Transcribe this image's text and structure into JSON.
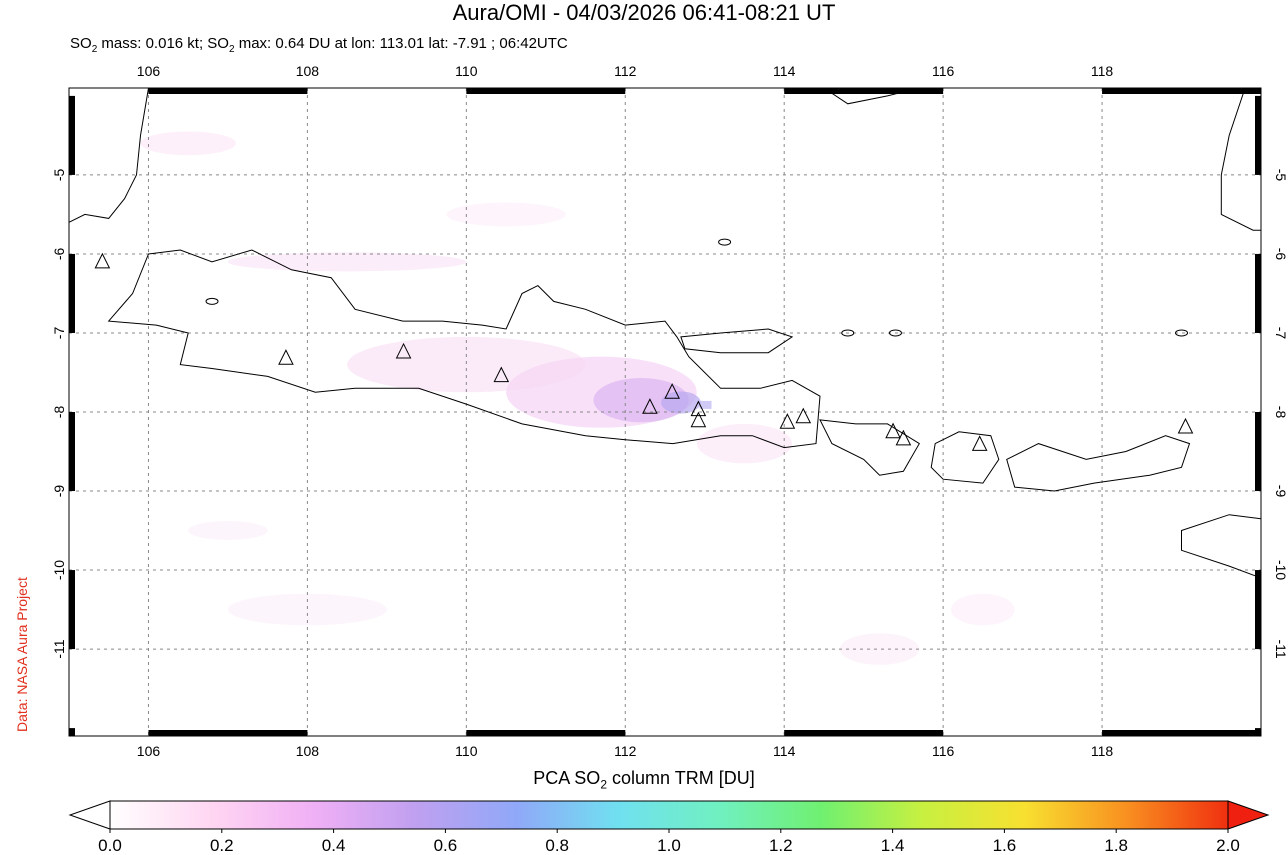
{
  "title": "Aura/OMI - 04/03/2026 06:41-08:21 UT",
  "subtitle": {
    "part1": "SO",
    "sub1": "2",
    "part2": " mass: 0.016 kt; SO",
    "sub2": "2",
    "part3": " max: 0.64 DU at lon: 113.01 lat: -7.91 ; 06:42UTC"
  },
  "credit": "Data: NASA Aura Project",
  "map": {
    "lon_range": [
      105,
      120
    ],
    "lat_range": [
      -12.1,
      -3.9
    ],
    "lon_ticks": [
      "106",
      "108",
      "110",
      "112",
      "114",
      "116",
      "118"
    ],
    "lat_ticks": [
      "-5",
      "-6",
      "-7",
      "-8",
      "-9",
      "-10",
      "-11"
    ],
    "volcanoes": [
      [
        105.42,
        -6.1
      ],
      [
        107.73,
        -7.32
      ],
      [
        109.21,
        -7.24
      ],
      [
        110.44,
        -7.54
      ],
      [
        112.31,
        -7.94
      ],
      [
        112.59,
        -7.75
      ],
      [
        112.92,
        -7.97
      ],
      [
        112.92,
        -8.11
      ],
      [
        114.04,
        -8.13
      ],
      [
        114.24,
        -8.06
      ],
      [
        115.37,
        -8.25
      ],
      [
        115.5,
        -8.34
      ],
      [
        116.46,
        -8.41
      ],
      [
        119.05,
        -8.19
      ]
    ],
    "so2_max": {
      "value": 0.64,
      "lon": 113.01,
      "lat": -7.91
    }
  },
  "colorbar": {
    "title_part1": "PCA SO",
    "title_sub": "2",
    "title_part2": " column TRM [DU]",
    "ticks": [
      "0.0",
      "0.2",
      "0.4",
      "0.6",
      "0.8",
      "1.0",
      "1.2",
      "1.4",
      "1.6",
      "1.8",
      "2.0"
    ],
    "colors": [
      "#ffffff",
      "#ffd6f2",
      "#f0b0f5",
      "#c0a0f0",
      "#90a8f8",
      "#70e0f0",
      "#70f0c0",
      "#70f070",
      "#c8f040",
      "#f8e030",
      "#f89020",
      "#f03010"
    ]
  }
}
